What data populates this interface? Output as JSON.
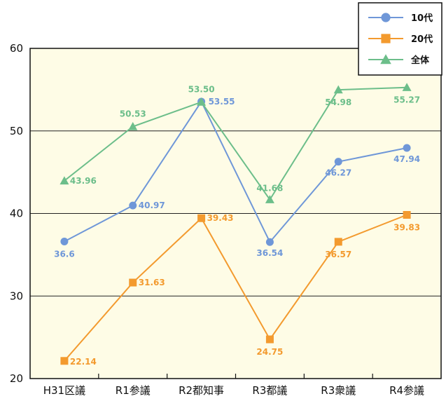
{
  "chart_data": {
    "type": "line",
    "title": "",
    "xlabel": "",
    "ylabel": "",
    "categories": [
      "H31区議",
      "R1参議",
      "R2都知事",
      "R3都議",
      "R3衆議",
      "R4参議"
    ],
    "ylim": [
      20,
      60
    ],
    "yticks": [
      20,
      30,
      40,
      50,
      60
    ],
    "grid": true,
    "legend": "top-right",
    "background": "#fefce6",
    "series": [
      {
        "name": "10代",
        "values": [
          36.6,
          40.97,
          53.55,
          36.54,
          46.27,
          47.94
        ],
        "labels": [
          "36.6",
          "40.97",
          "53.55",
          "36.54",
          "46.27",
          "47.94"
        ],
        "color": "#6f97d8",
        "marker": "circle"
      },
      {
        "name": "20代",
        "values": [
          22.14,
          31.63,
          39.43,
          24.75,
          36.57,
          39.83
        ],
        "labels": [
          "22.14",
          "31.63",
          "39.43",
          "24.75",
          "36.57",
          "39.83"
        ],
        "color": "#f39a2e",
        "marker": "square"
      },
      {
        "name": "全体",
        "values": [
          43.96,
          50.53,
          53.5,
          41.68,
          54.98,
          55.27
        ],
        "labels": [
          "43.96",
          "50.53",
          "53.50",
          "41.68",
          "54.98",
          "55.27"
        ],
        "color": "#6cbe8a",
        "marker": "triangle"
      }
    ]
  }
}
